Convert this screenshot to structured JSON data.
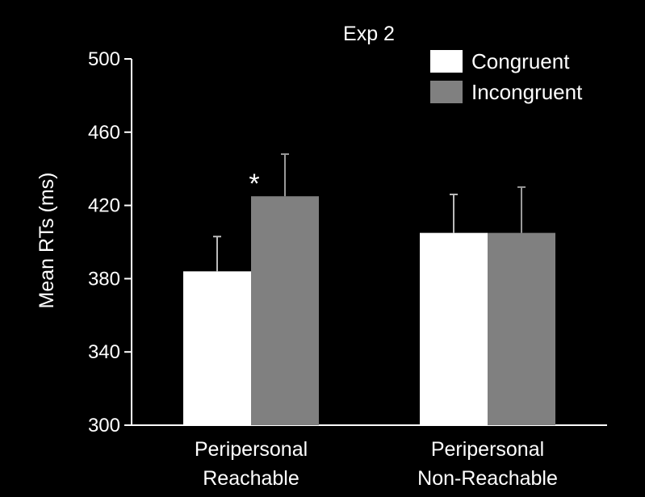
{
  "chart_data": {
    "type": "bar",
    "title": "Exp 2",
    "xlabel": "",
    "ylabel": "Mean RTs (ms)",
    "ylim": [
      300,
      500
    ],
    "yticks": [
      300,
      340,
      380,
      420,
      460,
      500
    ],
    "categories": [
      [
        "Peripersonal",
        "Reachable"
      ],
      [
        "Peripersonal",
        "Non-Reachable"
      ]
    ],
    "series": [
      {
        "name": "Congruent",
        "values": [
          384,
          405
        ],
        "errors": [
          19,
          21
        ],
        "color": "#ffffff"
      },
      {
        "name": "Incongruent",
        "values": [
          425,
          405
        ],
        "errors": [
          23,
          25
        ],
        "color": "#808080"
      }
    ],
    "annotations": [
      {
        "text": "*",
        "category": 0,
        "series": 1
      }
    ],
    "legend": "top-right",
    "grid": false
  }
}
